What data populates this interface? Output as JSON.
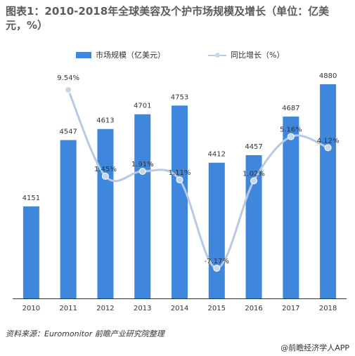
{
  "title": "图表1：2010-2018年全球美容及个护市场规模及增长（单位：亿美元，%）",
  "legend": {
    "bar_label": "市场规模（亿美元）",
    "line_label": "同比增长（%）"
  },
  "colors": {
    "bar": "#3f86dd",
    "line": "#b7c9e3",
    "marker": "#c6d6ec",
    "axis": "#333333",
    "text": "#333333"
  },
  "chart_data": {
    "type": "bar",
    "categories": [
      "2010",
      "2011",
      "2012",
      "2013",
      "2014",
      "2015",
      "2016",
      "2017",
      "2018"
    ],
    "series": [
      {
        "name": "市场规模（亿美元）",
        "type": "bar",
        "values": [
          4151,
          4547,
          4613,
          4701,
          4753,
          4412,
          4457,
          4687,
          4880
        ]
      },
      {
        "name": "同比增长（%）",
        "type": "line",
        "values": [
          null,
          9.54,
          1.45,
          1.91,
          1.11,
          -7.17,
          1.02,
          5.16,
          4.12
        ]
      }
    ],
    "bar_labels": [
      "4151",
      "4547",
      "4613",
      "4701",
      "4753",
      "4412",
      "4457",
      "4687",
      "4880"
    ],
    "line_labels": [
      "",
      "9.54%",
      "1.45%",
      "1.91%",
      "1.11%",
      "-7.17%",
      "1.02%",
      "5.16%",
      "4.12%"
    ]
  },
  "footer": {
    "source": "资料来源：Euromonitor  前瞻产业研究院整理",
    "brand": "@前瞻经济学人APP"
  }
}
